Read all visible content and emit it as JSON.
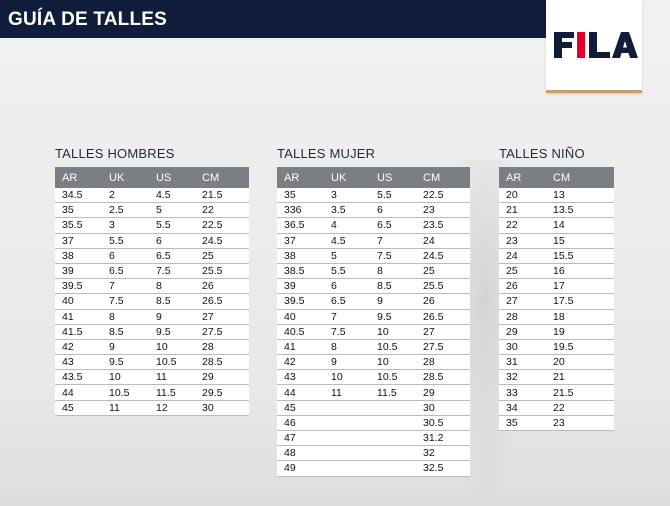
{
  "header": {
    "title": "GUÍA DE TALLES"
  },
  "brand": {
    "logo_text": "FILA",
    "logo_color": "#0f1c3a",
    "accent_color": "#e4002b",
    "header_color": "#0f1c3a"
  },
  "men": {
    "title": "TALLES HOMBRES",
    "columns": [
      "AR",
      "UK",
      "US",
      "CM"
    ],
    "rows": [
      [
        "34.5",
        "2",
        "4.5",
        "21.5"
      ],
      [
        "35",
        "2.5",
        "5",
        "22"
      ],
      [
        "35.5",
        "3",
        "5.5",
        "22.5"
      ],
      [
        "37",
        "5.5",
        "6",
        "24.5"
      ],
      [
        "38",
        "6",
        "6.5",
        "25"
      ],
      [
        "39",
        "6.5",
        "7.5",
        "25.5"
      ],
      [
        "39.5",
        "7",
        "8",
        "26"
      ],
      [
        "40",
        "7.5",
        "8.5",
        "26.5"
      ],
      [
        "41",
        "8",
        "9",
        "27"
      ],
      [
        "41.5",
        "8.5",
        "9.5",
        "27.5"
      ],
      [
        "42",
        "9",
        "10",
        "28"
      ],
      [
        "43",
        "9.5",
        "10.5",
        "28.5"
      ],
      [
        "43.5",
        "10",
        "11",
        "29"
      ],
      [
        "44",
        "10.5",
        "11.5",
        "29.5"
      ],
      [
        "45",
        "11",
        "12",
        "30"
      ]
    ]
  },
  "women": {
    "title": "TALLES MUJER",
    "columns": [
      "AR",
      "UK",
      "US",
      "CM"
    ],
    "rows": [
      [
        "35",
        "3",
        "5.5",
        "22.5"
      ],
      [
        "336",
        "3.5",
        "6",
        "23"
      ],
      [
        "36.5",
        "4",
        "6.5",
        "23.5"
      ],
      [
        "37",
        "4.5",
        "7",
        "24"
      ],
      [
        "38",
        "5",
        "7.5",
        "24.5"
      ],
      [
        "38.5",
        "5.5",
        "8",
        "25"
      ],
      [
        "39",
        "6",
        "8.5",
        "25.5"
      ],
      [
        "39.5",
        "6.5",
        "9",
        "26"
      ],
      [
        "40",
        "7",
        "9.5",
        "26.5"
      ],
      [
        "40.5",
        "7.5",
        "10",
        "27"
      ],
      [
        "41",
        "8",
        "10.5",
        "27.5"
      ],
      [
        "42",
        "9",
        "10",
        "28"
      ],
      [
        "43",
        "10",
        "10.5",
        "28.5"
      ],
      [
        "44",
        "11",
        "11.5",
        "29"
      ],
      [
        "45",
        "",
        "",
        "30"
      ],
      [
        "46",
        "",
        "",
        "30.5"
      ],
      [
        "47",
        "",
        "",
        "31.2"
      ],
      [
        "48",
        "",
        "",
        "32"
      ],
      [
        "49",
        "",
        "",
        "32.5"
      ]
    ]
  },
  "kids": {
    "title": "TALLES NIÑO",
    "columns": [
      "AR",
      "CM"
    ],
    "rows": [
      [
        "20",
        "13"
      ],
      [
        "21",
        "13.5"
      ],
      [
        "22",
        "14"
      ],
      [
        "23",
        "15"
      ],
      [
        "24",
        "15.5"
      ],
      [
        "25",
        "16"
      ],
      [
        "26",
        "17"
      ],
      [
        "27",
        "17.5"
      ],
      [
        "28",
        "18"
      ],
      [
        "29",
        "19"
      ],
      [
        "30",
        "19.5"
      ],
      [
        "31",
        "20"
      ],
      [
        "32",
        "21"
      ],
      [
        "33",
        "21.5"
      ],
      [
        "34",
        "22"
      ],
      [
        "35",
        "23"
      ]
    ]
  }
}
